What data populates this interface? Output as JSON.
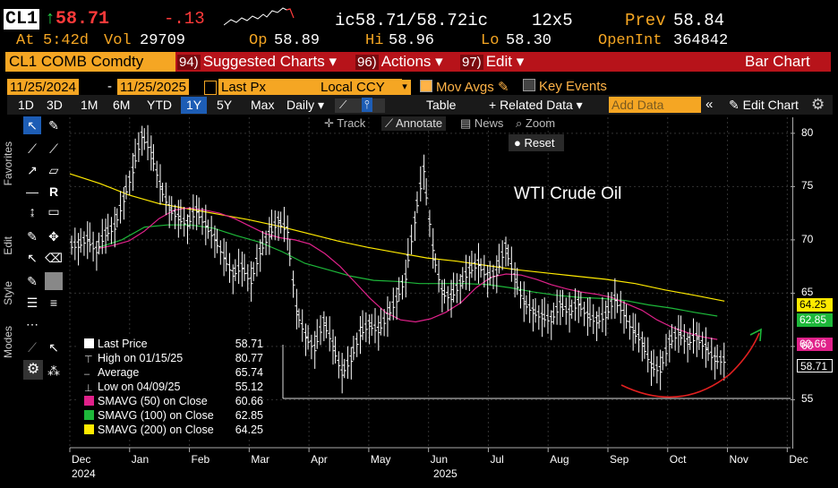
{
  "header": {
    "ticker": "CL1",
    "arrow": "↑",
    "last": "58.71",
    "change": "-.13",
    "bidask": "ic58.71/58.72ic",
    "size": "12x5",
    "prev_label": "Prev",
    "prev": "58.84",
    "time_label": "At",
    "time": "5:42d",
    "vol_label": "Vol",
    "vol": "29709",
    "open_label": "Op",
    "open": "58.89",
    "hi_label": "Hi",
    "hi": "58.96",
    "lo_label": "Lo",
    "lo": "58.30",
    "oi_label": "OpenInt",
    "oi": "364842"
  },
  "menubar": {
    "security": "CL1 COMB Comdty",
    "suggested_num": "94)",
    "suggested": "Suggested Charts ▾",
    "actions_num": "96)",
    "actions": "Actions ▾",
    "edit_num": "97)",
    "edit": "Edit ▾",
    "chart_type": "Bar Chart"
  },
  "controls": {
    "start_date": "11/25/2024",
    "dash": "-",
    "end_date": "11/25/2025",
    "price_field": "Last Px",
    "currency": "Local CCY",
    "mov_avgs": "Mov Avgs",
    "key_events": "Key Events"
  },
  "toolbar": {
    "periods": [
      "1D",
      "3D",
      "1M",
      "6M",
      "YTD",
      "1Y",
      "5Y",
      "Max"
    ],
    "selected_period": "1Y",
    "frequency": "Daily ▾",
    "table": "Table",
    "related": "+ Related Data ▾",
    "add_data_placeholder": "Add Data",
    "edit_chart": "Edit Chart",
    "track": "Track",
    "annotate": "Annotate",
    "news": "News",
    "zoom": "Zoom",
    "reset": "Reset"
  },
  "side_tabs": [
    "Favorites",
    "Edit",
    "Style",
    "Modes"
  ],
  "legend": [
    {
      "label": "Last Price",
      "value": "58.71",
      "color": "#ffffff"
    },
    {
      "label": "High on 01/15/25",
      "value": "80.77",
      "color": "#ffffff"
    },
    {
      "label": "Average",
      "value": "65.74",
      "color": "#ffffff"
    },
    {
      "label": "Low on 04/09/25",
      "value": "55.12",
      "color": "#ffffff"
    },
    {
      "label": "SMAVG (50)  on Close",
      "value": "60.66",
      "color": "#e0218a"
    },
    {
      "label": "SMAVG (100)  on Close",
      "value": "62.85",
      "color": "#1db83a"
    },
    {
      "label": "SMAVG (200)  on Close",
      "value": "64.25",
      "color": "#ffea00"
    }
  ],
  "chart_data": {
    "type": "line",
    "annotation": "WTI Crude Oil",
    "y_ticks": [
      55,
      60,
      65,
      70,
      75,
      80
    ],
    "ylim": [
      50.5,
      81.5
    ],
    "x_ticks": [
      "Dec",
      "Jan",
      "Feb",
      "Mar",
      "Apr",
      "May",
      "Jun",
      "Jul",
      "Aug",
      "Sep",
      "Oct",
      "Nov",
      "Dec"
    ],
    "x_year_labels": [
      "2024",
      "2025"
    ],
    "price_tags": [
      {
        "value": "64.25",
        "color": "#ffea00"
      },
      {
        "value": "62.85",
        "color": "#1db83a"
      },
      {
        "value": "60.66",
        "color": "#e0218a"
      },
      {
        "value": "58.71",
        "color": "#ffffff"
      }
    ],
    "low_line": 55.12,
    "series": [
      {
        "name": "Last Price",
        "color": "#ffffff",
        "values": [
          69.5,
          70.1,
          69.0,
          70.6,
          71.2,
          73.8,
          76.5,
          79.8,
          78.4,
          75.2,
          73.0,
          72.1,
          71.5,
          72.8,
          71.4,
          70.2,
          68.5,
          66.8,
          67.5,
          66.1,
          68.9,
          70.5,
          71.8,
          70.9,
          63.5,
          61.0,
          59.8,
          62.4,
          60.2,
          57.5,
          58.8,
          61.2,
          62.1,
          61.5,
          62.8,
          64.4,
          66.5,
          71.8,
          76.6,
          69.2,
          65.1,
          64.6,
          65.9,
          67.1,
          67.8,
          66.5,
          66.9,
          69.4,
          66.5,
          64.2,
          63.3,
          62.8,
          62.5,
          63.9,
          63.2,
          64.1,
          62.9,
          62.4,
          62.9,
          64.5,
          63.1,
          61.5,
          60.5,
          58.2,
          57.8,
          60.4,
          61.3,
          60.4,
          60.9,
          59.9,
          58.8,
          58.71
        ]
      },
      {
        "name": "SMAVG (50)",
        "color": "#e0218a",
        "values": [
          69.2,
          69.5,
          69.9,
          70.8,
          72.0,
          72.8,
          73.0,
          72.8,
          72.5,
          72.0,
          71.3,
          70.6,
          70.2,
          70.0,
          69.6,
          68.7,
          67.5,
          66.0,
          64.5,
          63.2,
          62.5,
          62.3,
          62.6,
          63.2,
          64.1,
          65.5,
          66.5,
          66.8,
          66.7,
          66.3,
          65.8,
          65.4,
          65.1,
          64.9,
          64.6,
          64.0,
          63.4,
          62.5,
          61.8,
          61.3,
          60.9,
          60.66
        ]
      },
      {
        "name": "SMAVG (100)",
        "color": "#1db83a",
        "values": [
          69.3,
          70.0,
          71.2,
          71.4,
          71.4,
          71.1,
          70.4,
          69.8,
          68.9,
          67.8,
          67.2,
          66.6,
          66.2,
          66.1,
          65.9,
          65.9,
          65.9,
          65.8,
          65.5,
          65.1,
          64.8,
          64.6,
          64.5,
          64.3,
          63.9,
          63.6,
          63.2,
          62.85
        ]
      },
      {
        "name": "SMAVG (200)",
        "color": "#ffea00",
        "values": [
          76.2,
          75.3,
          74.2,
          73.4,
          72.9,
          72.4,
          71.9,
          71.3,
          70.6,
          69.9,
          69.3,
          68.8,
          68.3,
          68.0,
          67.6,
          67.2,
          66.9,
          66.6,
          66.3,
          65.9,
          65.3,
          64.8,
          64.25
        ]
      }
    ]
  }
}
